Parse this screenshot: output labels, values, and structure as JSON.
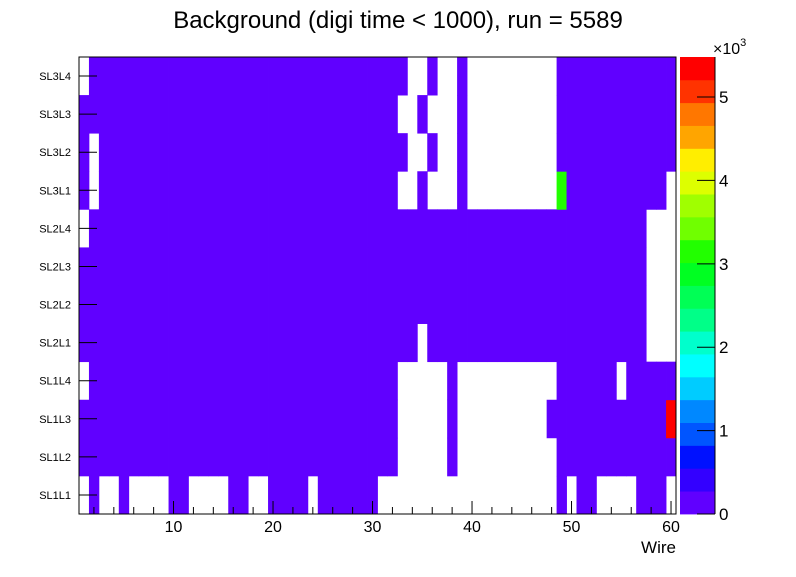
{
  "chart_data": {
    "type": "heatmap",
    "title": "Background (digi time < 1000), run = 5589",
    "xlabel": "Wire",
    "ylabel": "",
    "xlim": [
      0.5,
      60.5
    ],
    "x_ticks": [
      "10",
      "20",
      "30",
      "40",
      "50",
      "60"
    ],
    "y_categories": [
      "SL1L1",
      "SL1L2",
      "SL1L3",
      "SL1L4",
      "SL2L1",
      "SL2L2",
      "SL2L3",
      "SL2L4",
      "SL3L1",
      "SL3L2",
      "SL3L3",
      "SL3L4"
    ],
    "colorbar": {
      "multiplier": "×10",
      "exponent": "3",
      "range": [
        0,
        5480
      ],
      "ticks": [
        "0",
        "1",
        "2",
        "3",
        "4",
        "5"
      ],
      "colors": [
        "#6000ff",
        "#3300ff",
        "#0011ff",
        "#0055ff",
        "#0088ff",
        "#00ccff",
        "#00ffff",
        "#00ffcc",
        "#00ff88",
        "#00ff55",
        "#00ff22",
        "#22ff00",
        "#70ff00",
        "#a0ff00",
        "#ddff00",
        "#ffee00",
        "#ffa500",
        "#ff7700",
        "#ff3300",
        "#ff0000"
      ]
    },
    "values": [
      [
        0,
        100,
        0,
        0,
        100,
        0,
        0,
        0,
        0,
        100,
        100,
        0,
        0,
        0,
        0,
        100,
        100,
        0,
        0,
        100,
        100,
        100,
        100,
        0,
        100,
        100,
        100,
        100,
        100,
        100,
        0,
        0,
        0,
        0,
        0,
        0,
        0,
        0,
        0,
        0,
        0,
        0,
        0,
        0,
        0,
        0,
        0,
        0,
        100,
        0,
        100,
        100,
        0,
        0,
        0,
        0,
        100,
        100,
        100,
        0
      ],
      [
        100,
        100,
        100,
        100,
        100,
        100,
        100,
        100,
        100,
        100,
        100,
        100,
        100,
        100,
        100,
        100,
        100,
        100,
        100,
        100,
        100,
        100,
        100,
        100,
        100,
        100,
        100,
        100,
        100,
        100,
        100,
        100,
        0,
        0,
        0,
        0,
        0,
        100,
        0,
        0,
        0,
        0,
        0,
        0,
        0,
        0,
        0,
        0,
        100,
        100,
        100,
        100,
        100,
        100,
        100,
        100,
        100,
        100,
        100,
        100
      ],
      [
        100,
        100,
        100,
        100,
        100,
        100,
        100,
        100,
        100,
        100,
        100,
        100,
        100,
        100,
        100,
        100,
        100,
        100,
        100,
        100,
        100,
        100,
        100,
        100,
        100,
        100,
        100,
        100,
        100,
        100,
        100,
        100,
        0,
        0,
        0,
        0,
        0,
        100,
        0,
        0,
        0,
        0,
        0,
        0,
        0,
        0,
        0,
        100,
        100,
        100,
        100,
        100,
        100,
        100,
        100,
        100,
        100,
        100,
        100,
        5400
      ],
      [
        0,
        100,
        100,
        100,
        100,
        100,
        100,
        100,
        100,
        100,
        100,
        100,
        100,
        100,
        100,
        100,
        100,
        100,
        100,
        100,
        100,
        100,
        100,
        100,
        100,
        100,
        100,
        100,
        100,
        100,
        100,
        100,
        0,
        0,
        0,
        0,
        0,
        100,
        0,
        0,
        0,
        0,
        0,
        0,
        0,
        0,
        0,
        0,
        100,
        100,
        100,
        100,
        100,
        100,
        0,
        100,
        100,
        100,
        100,
        100
      ],
      [
        100,
        100,
        100,
        100,
        100,
        100,
        100,
        100,
        100,
        100,
        100,
        100,
        100,
        100,
        100,
        100,
        100,
        100,
        100,
        100,
        100,
        100,
        100,
        100,
        100,
        100,
        100,
        100,
        100,
        100,
        100,
        100,
        100,
        100,
        0,
        100,
        100,
        100,
        100,
        100,
        100,
        100,
        100,
        100,
        100,
        100,
        100,
        100,
        100,
        100,
        100,
        100,
        100,
        100,
        100,
        100,
        100,
        0,
        0,
        0
      ],
      [
        100,
        100,
        100,
        100,
        100,
        100,
        100,
        100,
        100,
        100,
        100,
        100,
        100,
        100,
        100,
        100,
        100,
        100,
        100,
        100,
        100,
        100,
        100,
        100,
        100,
        100,
        100,
        100,
        100,
        100,
        100,
        100,
        100,
        100,
        100,
        100,
        100,
        100,
        100,
        100,
        100,
        100,
        100,
        100,
        100,
        100,
        100,
        100,
        100,
        100,
        100,
        100,
        100,
        100,
        100,
        100,
        100,
        0,
        0,
        0
      ],
      [
        100,
        100,
        100,
        100,
        100,
        100,
        100,
        100,
        100,
        100,
        100,
        100,
        100,
        100,
        100,
        100,
        100,
        100,
        100,
        100,
        100,
        100,
        100,
        100,
        100,
        100,
        100,
        100,
        100,
        100,
        100,
        100,
        100,
        100,
        100,
        100,
        100,
        100,
        100,
        100,
        100,
        100,
        100,
        100,
        100,
        100,
        100,
        100,
        100,
        100,
        100,
        100,
        100,
        100,
        100,
        100,
        100,
        0,
        0,
        0
      ],
      [
        0,
        100,
        100,
        100,
        100,
        100,
        100,
        100,
        100,
        100,
        100,
        100,
        100,
        100,
        100,
        100,
        100,
        100,
        100,
        100,
        100,
        100,
        100,
        100,
        100,
        100,
        100,
        100,
        100,
        100,
        100,
        100,
        100,
        100,
        100,
        100,
        100,
        100,
        100,
        100,
        100,
        100,
        100,
        100,
        100,
        100,
        100,
        100,
        100,
        100,
        100,
        100,
        100,
        100,
        100,
        100,
        100,
        0,
        0,
        0
      ],
      [
        100,
        0,
        100,
        100,
        100,
        100,
        100,
        100,
        100,
        100,
        100,
        100,
        100,
        100,
        100,
        100,
        100,
        100,
        100,
        100,
        100,
        100,
        100,
        100,
        100,
        100,
        100,
        100,
        100,
        100,
        100,
        100,
        0,
        0,
        100,
        0,
        0,
        0,
        100,
        0,
        0,
        0,
        0,
        0,
        0,
        0,
        0,
        0,
        3150,
        100,
        100,
        100,
        100,
        100,
        100,
        100,
        100,
        100,
        100,
        0
      ],
      [
        100,
        0,
        100,
        100,
        100,
        100,
        100,
        100,
        100,
        100,
        100,
        100,
        100,
        100,
        100,
        100,
        100,
        100,
        100,
        100,
        100,
        100,
        100,
        100,
        100,
        100,
        100,
        100,
        100,
        100,
        100,
        100,
        100,
        0,
        0,
        100,
        0,
        0,
        100,
        0,
        0,
        0,
        0,
        0,
        0,
        0,
        0,
        0,
        100,
        100,
        100,
        100,
        100,
        100,
        100,
        100,
        100,
        100,
        100,
        100
      ],
      [
        100,
        100,
        100,
        100,
        100,
        100,
        100,
        100,
        100,
        100,
        100,
        100,
        100,
        100,
        100,
        100,
        100,
        100,
        100,
        100,
        100,
        100,
        100,
        100,
        100,
        100,
        100,
        100,
        100,
        100,
        100,
        100,
        0,
        0,
        100,
        0,
        0,
        0,
        100,
        0,
        0,
        0,
        0,
        0,
        0,
        0,
        0,
        0,
        100,
        100,
        100,
        100,
        100,
        100,
        100,
        100,
        100,
        100,
        100,
        100
      ],
      [
        0,
        100,
        100,
        100,
        100,
        100,
        100,
        100,
        100,
        100,
        100,
        100,
        100,
        100,
        100,
        100,
        100,
        100,
        100,
        100,
        100,
        100,
        100,
        100,
        100,
        100,
        100,
        100,
        100,
        100,
        100,
        100,
        100,
        0,
        0,
        100,
        0,
        0,
        100,
        0,
        0,
        0,
        0,
        0,
        0,
        0,
        0,
        0,
        100,
        100,
        100,
        100,
        100,
        100,
        100,
        100,
        100,
        100,
        100,
        100
      ]
    ]
  }
}
